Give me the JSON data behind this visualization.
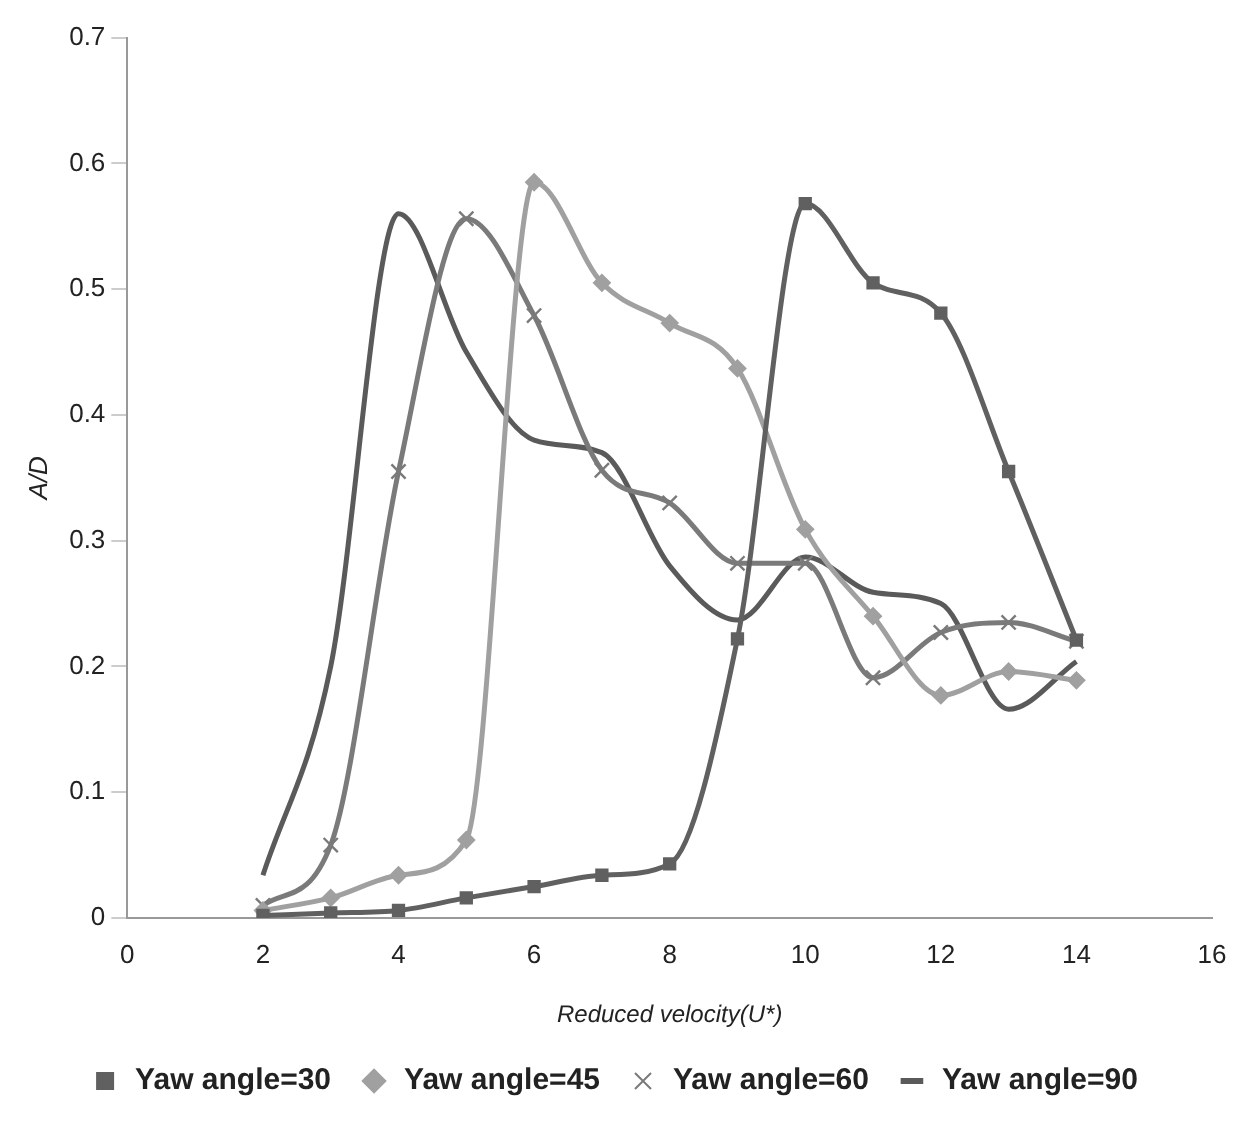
{
  "chart_data": {
    "type": "line",
    "xlabel": "Reduced velocity(U*)",
    "ylabel": "A/D",
    "x": [
      2,
      3,
      4,
      5,
      6,
      7,
      8,
      9,
      10,
      11,
      12,
      13,
      14
    ],
    "xlim": [
      0,
      16
    ],
    "xticks": [
      0,
      2,
      4,
      6,
      8,
      10,
      12,
      14,
      16
    ],
    "ylim": [
      0,
      0.7
    ],
    "yticks": [
      0,
      0.1,
      0.2,
      0.3,
      0.4,
      0.5,
      0.6,
      0.7
    ],
    "grid": false,
    "legend": "bottom",
    "series": [
      {
        "name": "Yaw angle=30",
        "color": "#606060",
        "marker": "square",
        "values": [
          0.002,
          0.004,
          0.006,
          0.016,
          0.025,
          0.034,
          0.043,
          0.222,
          0.568,
          0.505,
          0.481,
          0.355,
          0.221
        ]
      },
      {
        "name": "Yaw angle=45",
        "color": "#a0a0a0",
        "marker": "diamond",
        "values": [
          0.006,
          0.016,
          0.034,
          0.062,
          0.585,
          0.505,
          0.473,
          0.437,
          0.309,
          0.24,
          0.177,
          0.196,
          0.189
        ]
      },
      {
        "name": "Yaw angle=60",
        "color": "#7a7a7a",
        "marker": "cross",
        "values": [
          0.01,
          0.058,
          0.355,
          0.556,
          0.479,
          0.356,
          0.33,
          0.282,
          0.282,
          0.191,
          0.227,
          0.235,
          0.22
        ]
      },
      {
        "name": "Yaw angle=90",
        "color": "#5a5a5a",
        "marker": "none",
        "values": [
          0.034,
          0.2,
          0.56,
          0.45,
          0.38,
          0.37,
          0.28,
          0.237,
          0.287,
          0.259,
          0.25,
          0.166,
          0.204
        ]
      }
    ]
  }
}
